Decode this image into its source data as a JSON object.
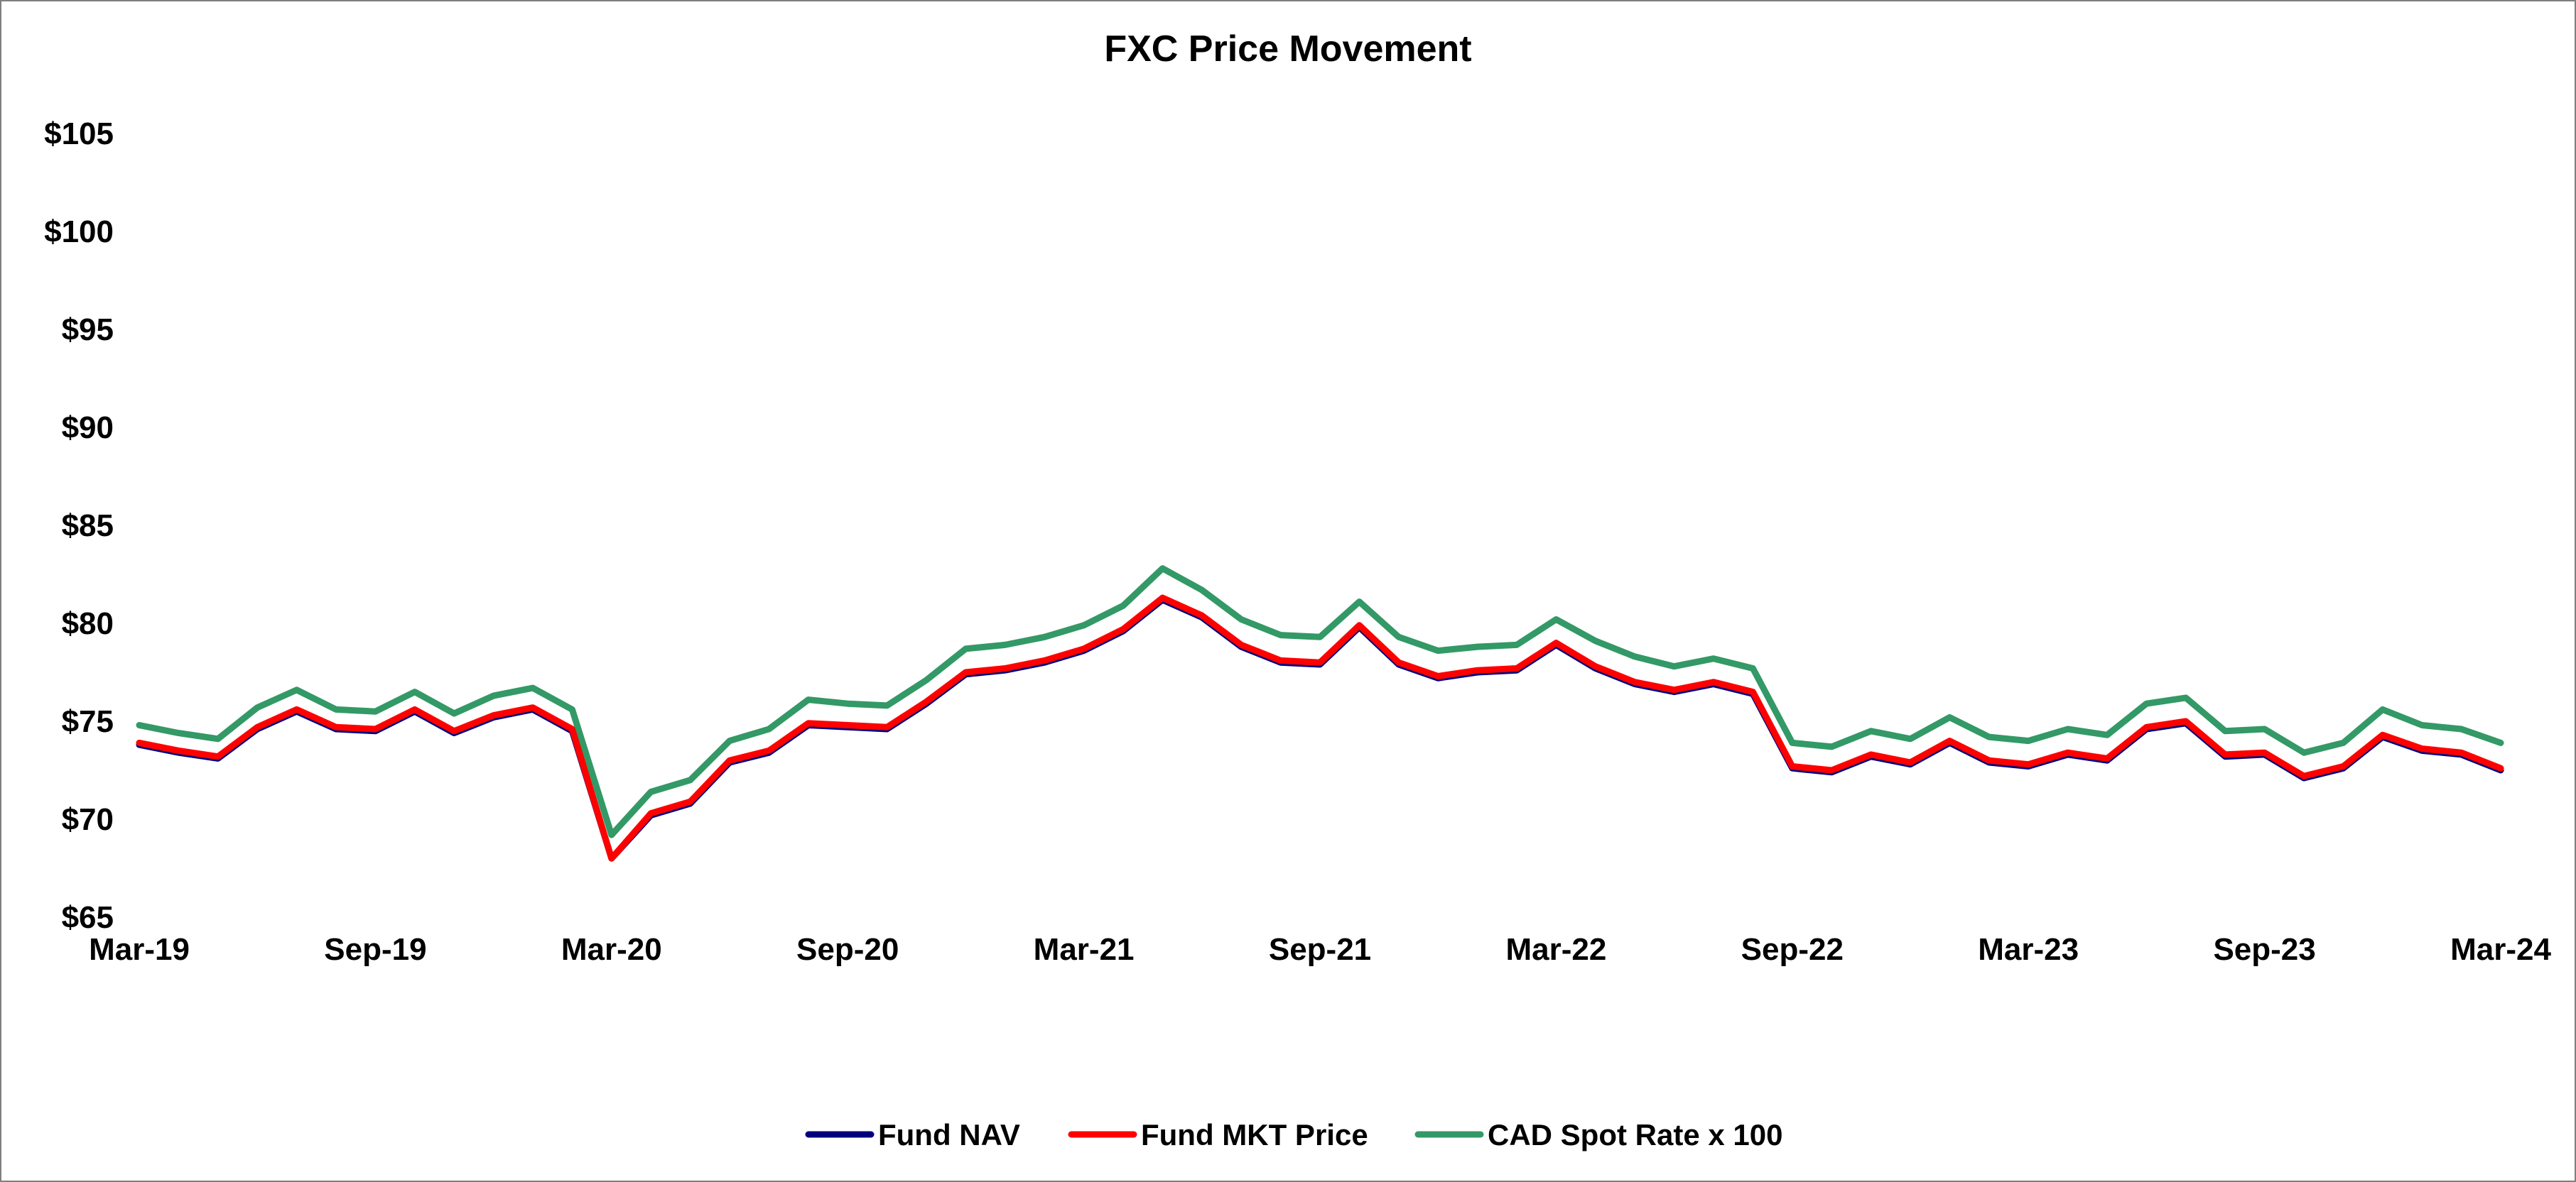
{
  "colors": {
    "nav": "#00007f",
    "mkt": "#ff0000",
    "cad": "#339966"
  },
  "chart_data": {
    "type": "line",
    "title": "FXC Price Movement",
    "xlabel": "",
    "ylabel": "",
    "ylim": [
      65,
      105
    ],
    "xlim": [
      "2019-03",
      "2024-03"
    ],
    "y_ticks": [
      {
        "value": 105,
        "label": "$105"
      },
      {
        "value": 100,
        "label": "$100"
      },
      {
        "value": 95,
        "label": "$95"
      },
      {
        "value": 90,
        "label": "$90"
      },
      {
        "value": 85,
        "label": "$85"
      },
      {
        "value": 80,
        "label": "$80"
      },
      {
        "value": 75,
        "label": "$75"
      },
      {
        "value": 70,
        "label": "$70"
      },
      {
        "value": 65,
        "label": "$65"
      }
    ],
    "x_ticks": [
      {
        "value": "2019-03",
        "label": "Mar-19"
      },
      {
        "value": "2019-09",
        "label": "Sep-19"
      },
      {
        "value": "2020-03",
        "label": "Mar-20"
      },
      {
        "value": "2020-09",
        "label": "Sep-20"
      },
      {
        "value": "2021-03",
        "label": "Mar-21"
      },
      {
        "value": "2021-09",
        "label": "Sep-21"
      },
      {
        "value": "2022-03",
        "label": "Mar-22"
      },
      {
        "value": "2022-09",
        "label": "Sep-22"
      },
      {
        "value": "2023-03",
        "label": "Mar-23"
      },
      {
        "value": "2023-09",
        "label": "Sep-23"
      },
      {
        "value": "2024-03",
        "label": "Mar-24"
      }
    ],
    "grid": false,
    "legend_position": "bottom-center",
    "series": [
      {
        "name": "Fund NAV",
        "color": "#00007f",
        "points": [
          [
            "2019-03",
            73.8
          ],
          [
            "2019-04",
            73.4
          ],
          [
            "2019-05",
            73.1
          ],
          [
            "2019-06",
            74.6
          ],
          [
            "2019-07",
            75.5
          ],
          [
            "2019-08",
            74.6
          ],
          [
            "2019-09",
            74.5
          ],
          [
            "2019-10",
            75.5
          ],
          [
            "2019-11",
            74.4
          ],
          [
            "2019-12",
            75.2
          ],
          [
            "2020-01",
            75.6
          ],
          [
            "2020-02",
            74.5
          ],
          [
            "2020-03",
            68.0
          ],
          [
            "2020-04",
            70.2
          ],
          [
            "2020-05",
            70.8
          ],
          [
            "2020-06",
            72.9
          ],
          [
            "2020-07",
            73.4
          ],
          [
            "2020-08",
            74.8
          ],
          [
            "2020-09",
            74.7
          ],
          [
            "2020-10",
            74.6
          ],
          [
            "2020-11",
            75.9
          ],
          [
            "2020-12",
            77.4
          ],
          [
            "2021-01",
            77.6
          ],
          [
            "2021-02",
            78.0
          ],
          [
            "2021-03",
            78.6
          ],
          [
            "2021-04",
            79.6
          ],
          [
            "2021-05",
            81.2
          ],
          [
            "2021-06",
            80.3
          ],
          [
            "2021-07",
            78.8
          ],
          [
            "2021-08",
            78.0
          ],
          [
            "2021-09",
            77.9
          ],
          [
            "2021-10",
            79.8
          ],
          [
            "2021-11",
            77.9
          ],
          [
            "2021-12",
            77.2
          ],
          [
            "2022-01",
            77.5
          ],
          [
            "2022-02",
            77.6
          ],
          [
            "2022-03",
            78.9
          ],
          [
            "2022-04",
            77.7
          ],
          [
            "2022-05",
            76.9
          ],
          [
            "2022-06",
            76.5
          ],
          [
            "2022-07",
            76.9
          ],
          [
            "2022-08",
            76.4
          ],
          [
            "2022-09",
            72.6
          ],
          [
            "2022-10",
            72.4
          ],
          [
            "2022-11",
            73.2
          ],
          [
            "2022-12",
            72.8
          ],
          [
            "2023-01",
            73.9
          ],
          [
            "2023-02",
            72.9
          ],
          [
            "2023-03",
            72.7
          ],
          [
            "2023-04",
            73.3
          ],
          [
            "2023-05",
            73.0
          ],
          [
            "2023-06",
            74.6
          ],
          [
            "2023-07",
            74.9
          ],
          [
            "2023-08",
            73.2
          ],
          [
            "2023-09",
            73.3
          ],
          [
            "2023-10",
            72.1
          ],
          [
            "2023-11",
            72.6
          ],
          [
            "2023-12",
            74.2
          ],
          [
            "2024-01",
            73.5
          ],
          [
            "2024-02",
            73.3
          ],
          [
            "2024-03",
            72.5
          ]
        ]
      },
      {
        "name": "Fund MKT Price",
        "color": "#ff0000",
        "points": [
          [
            "2019-03",
            73.9
          ],
          [
            "2019-04",
            73.5
          ],
          [
            "2019-05",
            73.2
          ],
          [
            "2019-06",
            74.7
          ],
          [
            "2019-07",
            75.6
          ],
          [
            "2019-08",
            74.7
          ],
          [
            "2019-09",
            74.6
          ],
          [
            "2019-10",
            75.6
          ],
          [
            "2019-11",
            74.5
          ],
          [
            "2019-12",
            75.3
          ],
          [
            "2020-01",
            75.7
          ],
          [
            "2020-02",
            74.6
          ],
          [
            "2020-03",
            68.0
          ],
          [
            "2020-04",
            70.3
          ],
          [
            "2020-05",
            70.9
          ],
          [
            "2020-06",
            73.0
          ],
          [
            "2020-07",
            73.5
          ],
          [
            "2020-08",
            74.9
          ],
          [
            "2020-09",
            74.8
          ],
          [
            "2020-10",
            74.7
          ],
          [
            "2020-11",
            76.0
          ],
          [
            "2020-12",
            77.5
          ],
          [
            "2021-01",
            77.7
          ],
          [
            "2021-02",
            78.1
          ],
          [
            "2021-03",
            78.7
          ],
          [
            "2021-04",
            79.7
          ],
          [
            "2021-05",
            81.3
          ],
          [
            "2021-06",
            80.4
          ],
          [
            "2021-07",
            78.9
          ],
          [
            "2021-08",
            78.1
          ],
          [
            "2021-09",
            78.0
          ],
          [
            "2021-10",
            79.9
          ],
          [
            "2021-11",
            78.0
          ],
          [
            "2021-12",
            77.3
          ],
          [
            "2022-01",
            77.6
          ],
          [
            "2022-02",
            77.7
          ],
          [
            "2022-03",
            79.0
          ],
          [
            "2022-04",
            77.8
          ],
          [
            "2022-05",
            77.0
          ],
          [
            "2022-06",
            76.6
          ],
          [
            "2022-07",
            77.0
          ],
          [
            "2022-08",
            76.5
          ],
          [
            "2022-09",
            72.7
          ],
          [
            "2022-10",
            72.5
          ],
          [
            "2022-11",
            73.3
          ],
          [
            "2022-12",
            72.9
          ],
          [
            "2023-01",
            74.0
          ],
          [
            "2023-02",
            73.0
          ],
          [
            "2023-03",
            72.8
          ],
          [
            "2023-04",
            73.4
          ],
          [
            "2023-05",
            73.1
          ],
          [
            "2023-06",
            74.7
          ],
          [
            "2023-07",
            75.0
          ],
          [
            "2023-08",
            73.3
          ],
          [
            "2023-09",
            73.4
          ],
          [
            "2023-10",
            72.2
          ],
          [
            "2023-11",
            72.7
          ],
          [
            "2023-12",
            74.3
          ],
          [
            "2024-01",
            73.6
          ],
          [
            "2024-02",
            73.4
          ],
          [
            "2024-03",
            72.6
          ]
        ]
      },
      {
        "name": "CAD Spot Rate x 100",
        "color": "#339966",
        "points": [
          [
            "2019-03",
            74.8
          ],
          [
            "2019-04",
            74.4
          ],
          [
            "2019-05",
            74.1
          ],
          [
            "2019-06",
            75.7
          ],
          [
            "2019-07",
            76.6
          ],
          [
            "2019-08",
            75.6
          ],
          [
            "2019-09",
            75.5
          ],
          [
            "2019-10",
            76.5
          ],
          [
            "2019-11",
            75.4
          ],
          [
            "2019-12",
            76.3
          ],
          [
            "2020-01",
            76.7
          ],
          [
            "2020-02",
            75.6
          ],
          [
            "2020-03",
            69.2
          ],
          [
            "2020-04",
            71.4
          ],
          [
            "2020-05",
            72.0
          ],
          [
            "2020-06",
            74.0
          ],
          [
            "2020-07",
            74.6
          ],
          [
            "2020-08",
            76.1
          ],
          [
            "2020-09",
            75.9
          ],
          [
            "2020-10",
            75.8
          ],
          [
            "2020-11",
            77.1
          ],
          [
            "2020-12",
            78.7
          ],
          [
            "2021-01",
            78.9
          ],
          [
            "2021-02",
            79.3
          ],
          [
            "2021-03",
            79.9
          ],
          [
            "2021-04",
            80.9
          ],
          [
            "2021-05",
            82.8
          ],
          [
            "2021-06",
            81.7
          ],
          [
            "2021-07",
            80.2
          ],
          [
            "2021-08",
            79.4
          ],
          [
            "2021-09",
            79.3
          ],
          [
            "2021-10",
            81.1
          ],
          [
            "2021-11",
            79.3
          ],
          [
            "2021-12",
            78.6
          ],
          [
            "2022-01",
            78.8
          ],
          [
            "2022-02",
            78.9
          ],
          [
            "2022-03",
            80.2
          ],
          [
            "2022-04",
            79.1
          ],
          [
            "2022-05",
            78.3
          ],
          [
            "2022-06",
            77.8
          ],
          [
            "2022-07",
            78.2
          ],
          [
            "2022-08",
            77.7
          ],
          [
            "2022-09",
            73.9
          ],
          [
            "2022-10",
            73.7
          ],
          [
            "2022-11",
            74.5
          ],
          [
            "2022-12",
            74.1
          ],
          [
            "2023-01",
            75.2
          ],
          [
            "2023-02",
            74.2
          ],
          [
            "2023-03",
            74.0
          ],
          [
            "2023-04",
            74.6
          ],
          [
            "2023-05",
            74.3
          ],
          [
            "2023-06",
            75.9
          ],
          [
            "2023-07",
            76.2
          ],
          [
            "2023-08",
            74.5
          ],
          [
            "2023-09",
            74.6
          ],
          [
            "2023-10",
            73.4
          ],
          [
            "2023-11",
            73.9
          ],
          [
            "2023-12",
            75.6
          ],
          [
            "2024-01",
            74.8
          ],
          [
            "2024-02",
            74.6
          ],
          [
            "2024-03",
            73.9
          ]
        ]
      }
    ]
  }
}
